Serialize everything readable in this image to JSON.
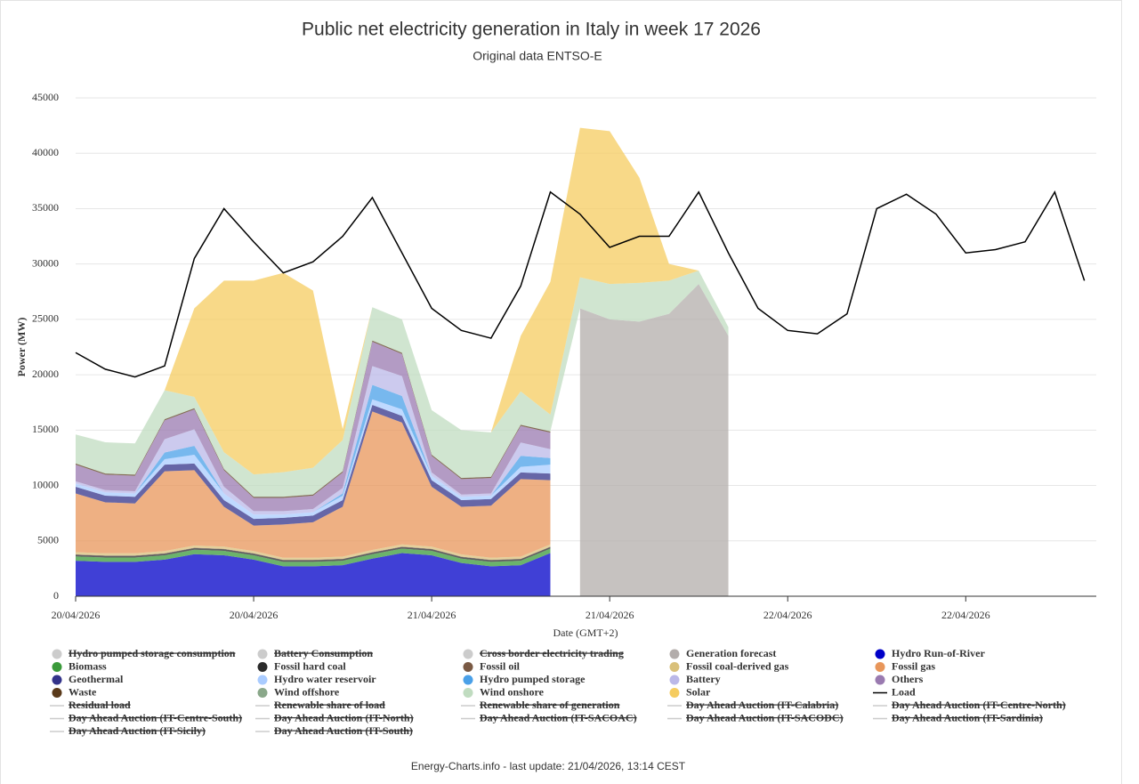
{
  "chart_data": {
    "type": "area",
    "title": "Public net electricity generation in Italy in week 17 2026",
    "subtitle": "Original data ENTSO-E",
    "y_label": "Power (MW)",
    "x_label": "Date (GMT+2)",
    "footer": "Energy-Charts.info - last update: 21/04/2026, 13:14 CEST",
    "ylim": [
      0,
      45000
    ],
    "yticks": [
      0,
      5000,
      10000,
      15000,
      20000,
      25000,
      30000,
      35000,
      40000,
      45000
    ],
    "xlim": [
      0,
      68.8
    ],
    "xticks": [
      {
        "value": 0,
        "label": "20/04/2026"
      },
      {
        "value": 12,
        "label": "20/04/2026"
      },
      {
        "value": 24,
        "label": "21/04/2026"
      },
      {
        "value": 36,
        "label": "21/04/2026"
      },
      {
        "value": 48,
        "label": "22/04/2026"
      },
      {
        "value": 60,
        "label": "22/04/2026"
      }
    ],
    "grid": true,
    "stacked": true,
    "x": [
      0,
      2,
      4,
      6,
      8,
      10,
      12,
      14,
      16,
      18,
      20,
      22,
      24,
      26,
      28,
      30,
      32,
      34,
      36,
      38,
      40,
      42,
      44,
      46,
      48,
      50,
      52,
      54,
      56,
      58,
      60,
      62,
      64,
      66,
      68
    ],
    "series": [
      {
        "name": "Hydro pumped storage consumption",
        "type": "area",
        "visible": false,
        "color": "#cccccc"
      },
      {
        "name": "Battery Consumption",
        "type": "area",
        "visible": false,
        "color": "#cccccc"
      },
      {
        "name": "Cross border electricity trading",
        "type": "area",
        "visible": false,
        "color": "#cccccc"
      },
      {
        "name": "Generation forecast",
        "type": "area",
        "visible": true,
        "color": "#b3adab",
        "values": [
          null,
          null,
          null,
          null,
          null,
          null,
          null,
          null,
          null,
          null,
          null,
          null,
          null,
          null,
          null,
          null,
          null,
          26000,
          25000,
          24800,
          25500,
          28200,
          23500,
          null,
          null,
          null,
          null,
          null,
          null,
          null,
          null,
          null,
          null,
          null,
          null
        ]
      },
      {
        "name": "Hydro Run-of-River",
        "type": "area",
        "visible": true,
        "color": "#0000c8",
        "values": [
          3200,
          3100,
          3100,
          3300,
          3800,
          3700,
          3300,
          2700,
          2700,
          2800,
          3400,
          3900,
          3700,
          3000,
          2700,
          2800,
          3900,
          null,
          null,
          null,
          null,
          null,
          null,
          null,
          null,
          null,
          null,
          null,
          null,
          null,
          null,
          null,
          null,
          null,
          null
        ]
      },
      {
        "name": "Biomass",
        "type": "area",
        "visible": true,
        "color": "#3a9a3a",
        "values": [
          400,
          400,
          400,
          400,
          400,
          400,
          400,
          400,
          400,
          400,
          400,
          400,
          400,
          400,
          400,
          400,
          400,
          null,
          null,
          null,
          null,
          null,
          null,
          null,
          null,
          null,
          null,
          null,
          null,
          null,
          null,
          null,
          null,
          null,
          null
        ]
      },
      {
        "name": "Fossil hard coal",
        "type": "area",
        "visible": true,
        "color": "#2b2b2b",
        "values": [
          150,
          150,
          150,
          150,
          150,
          150,
          150,
          150,
          150,
          150,
          150,
          150,
          150,
          150,
          150,
          150,
          150,
          null,
          null,
          null,
          null,
          null,
          null,
          null,
          null,
          null,
          null,
          null,
          null,
          null,
          null,
          null,
          null,
          null,
          null
        ]
      },
      {
        "name": "Fossil oil",
        "type": "area",
        "visible": true,
        "color": "#7a5a44",
        "values": [
          30,
          30,
          30,
          30,
          30,
          30,
          30,
          30,
          30,
          30,
          30,
          30,
          30,
          30,
          30,
          30,
          30,
          null,
          null,
          null,
          null,
          null,
          null,
          null,
          null,
          null,
          null,
          null,
          null,
          null,
          null,
          null,
          null,
          null,
          null
        ]
      },
      {
        "name": "Fossil coal-derived gas",
        "type": "area",
        "visible": true,
        "color": "#d9c07a",
        "values": [
          200,
          200,
          200,
          200,
          200,
          200,
          200,
          200,
          200,
          200,
          200,
          200,
          200,
          200,
          200,
          200,
          200,
          null,
          null,
          null,
          null,
          null,
          null,
          null,
          null,
          null,
          null,
          null,
          null,
          null,
          null,
          null,
          null,
          null,
          null
        ]
      },
      {
        "name": "Fossil gas",
        "type": "area",
        "visible": true,
        "color": "#e8965a",
        "values": [
          5300,
          4600,
          4500,
          7200,
          6800,
          3600,
          2300,
          3000,
          3200,
          4500,
          12500,
          11000,
          5400,
          4300,
          4700,
          7000,
          5800,
          null,
          null,
          null,
          null,
          null,
          null,
          null,
          null,
          null,
          null,
          null,
          null,
          null,
          null,
          null,
          null,
          null,
          null
        ]
      },
      {
        "name": "Geothermal",
        "type": "area",
        "visible": true,
        "color": "#33338a",
        "values": [
          600,
          600,
          600,
          600,
          600,
          600,
          600,
          600,
          600,
          600,
          600,
          600,
          600,
          600,
          600,
          600,
          600,
          null,
          null,
          null,
          null,
          null,
          null,
          null,
          null,
          null,
          null,
          null,
          null,
          null,
          null,
          null,
          null,
          null,
          null
        ]
      },
      {
        "name": "Hydro water reservoir",
        "type": "area",
        "visible": true,
        "color": "#aaccff",
        "values": [
          300,
          300,
          300,
          500,
          800,
          600,
          400,
          300,
          300,
          400,
          500,
          600,
          400,
          300,
          300,
          500,
          800,
          null,
          null,
          null,
          null,
          null,
          null,
          null,
          null,
          null,
          null,
          null,
          null,
          null,
          null,
          null,
          null,
          null,
          null
        ]
      },
      {
        "name": "Hydro pumped storage",
        "type": "area",
        "visible": true,
        "color": "#4aa0e8",
        "values": [
          0,
          0,
          0,
          600,
          800,
          0,
          0,
          0,
          0,
          200,
          1300,
          1200,
          0,
          0,
          0,
          1000,
          600,
          null,
          null,
          null,
          null,
          null,
          null,
          null,
          null,
          null,
          null,
          null,
          null,
          null,
          null,
          null,
          null,
          null,
          null
        ]
      },
      {
        "name": "Battery",
        "type": "area",
        "visible": true,
        "color": "#bbb8e8",
        "values": [
          200,
          200,
          200,
          1200,
          1500,
          600,
          300,
          300,
          300,
          500,
          1700,
          1800,
          300,
          200,
          200,
          1200,
          800,
          null,
          null,
          null,
          null,
          null,
          null,
          null,
          null,
          null,
          null,
          null,
          null,
          null,
          null,
          null,
          null,
          null,
          null
        ]
      },
      {
        "name": "Others",
        "type": "area",
        "visible": true,
        "color": "#9a7ab0",
        "values": [
          1500,
          1400,
          1400,
          1700,
          1800,
          1500,
          1200,
          1200,
          1200,
          1400,
          2200,
          2000,
          1500,
          1400,
          1400,
          1500,
          1500,
          null,
          null,
          null,
          null,
          null,
          null,
          null,
          null,
          null,
          null,
          null,
          null,
          null,
          null,
          null,
          null,
          null,
          null
        ]
      },
      {
        "name": "Waste",
        "type": "area",
        "visible": true,
        "color": "#5a3a1a",
        "values": [
          100,
          100,
          100,
          100,
          100,
          100,
          100,
          100,
          100,
          100,
          100,
          100,
          100,
          100,
          100,
          100,
          100,
          null,
          null,
          null,
          null,
          null,
          null,
          null,
          null,
          null,
          null,
          null,
          null,
          null,
          null,
          null,
          null,
          null,
          null
        ]
      },
      {
        "name": "Wind offshore",
        "type": "area",
        "visible": true,
        "color": "#8aa88a",
        "values": [
          20,
          20,
          20,
          20,
          20,
          20,
          20,
          20,
          20,
          20,
          20,
          20,
          20,
          20,
          20,
          20,
          20,
          null,
          null,
          null,
          null,
          null,
          null,
          null,
          null,
          null,
          null,
          null,
          null,
          null,
          null,
          null,
          null,
          null,
          null
        ]
      },
      {
        "name": "Wind onshore",
        "type": "area",
        "visible": true,
        "color": "#c0dcc0",
        "values": [
          2600,
          2800,
          2800,
          2600,
          1000,
          1500,
          2000,
          2200,
          2400,
          2800,
          3000,
          3000,
          4000,
          4300,
          4000,
          3000,
          1500,
          2800,
          3200,
          3500,
          3000,
          1200,
          800,
          null,
          null,
          null,
          null,
          null,
          null,
          null,
          null,
          null,
          null,
          null,
          null
        ]
      },
      {
        "name": "Solar",
        "type": "area",
        "visible": true,
        "color": "#f5cc60",
        "values": [
          0,
          0,
          0,
          0,
          8000,
          15500,
          17500,
          18000,
          16000,
          1000,
          0,
          0,
          0,
          0,
          0,
          5000,
          12000,
          13500,
          13800,
          9500,
          1500,
          0,
          0,
          null,
          null,
          null,
          null,
          null,
          null,
          null,
          null,
          null,
          null,
          null,
          null
        ]
      },
      {
        "name": "Load",
        "type": "line",
        "visible": true,
        "color": "#000000",
        "values": [
          22000,
          20500,
          19800,
          20800,
          30500,
          35000,
          32000,
          29200,
          30200,
          32500,
          36000,
          31000,
          26000,
          24000,
          23300,
          28000,
          36500,
          34500,
          31500,
          32500,
          32500,
          36500,
          31000,
          26000,
          24000,
          23700,
          25500,
          35000,
          36300,
          34500,
          31000,
          31300,
          32000,
          36500,
          28500
        ]
      },
      {
        "name": "Residual load",
        "type": "line",
        "visible": false,
        "color": "#cccccc"
      },
      {
        "name": "Renewable share of load",
        "type": "line",
        "visible": false,
        "color": "#cccccc"
      },
      {
        "name": "Renewable share of generation",
        "type": "line",
        "visible": false,
        "color": "#cccccc"
      },
      {
        "name": "Day Ahead Auction (IT-Calabria)",
        "type": "line",
        "visible": false,
        "color": "#cccccc"
      },
      {
        "name": "Day Ahead Auction (IT-Centre-North)",
        "type": "line",
        "visible": false,
        "color": "#cccccc"
      },
      {
        "name": "Day Ahead Auction (IT-Centre-South)",
        "type": "line",
        "visible": false,
        "color": "#cccccc"
      },
      {
        "name": "Day Ahead Auction (IT-North)",
        "type": "line",
        "visible": false,
        "color": "#cccccc"
      },
      {
        "name": "Day Ahead Auction (IT-SACOAC)",
        "type": "line",
        "visible": false,
        "color": "#cccccc"
      },
      {
        "name": "Day Ahead Auction (IT-SACODC)",
        "type": "line",
        "visible": false,
        "color": "#cccccc"
      },
      {
        "name": "Day Ahead Auction (IT-Sardinia)",
        "type": "line",
        "visible": false,
        "color": "#cccccc"
      },
      {
        "name": "Day Ahead Auction (IT-Sicily)",
        "type": "line",
        "visible": false,
        "color": "#cccccc"
      },
      {
        "name": "Day Ahead Auction (IT-South)",
        "type": "line",
        "visible": false,
        "color": "#cccccc"
      }
    ]
  }
}
